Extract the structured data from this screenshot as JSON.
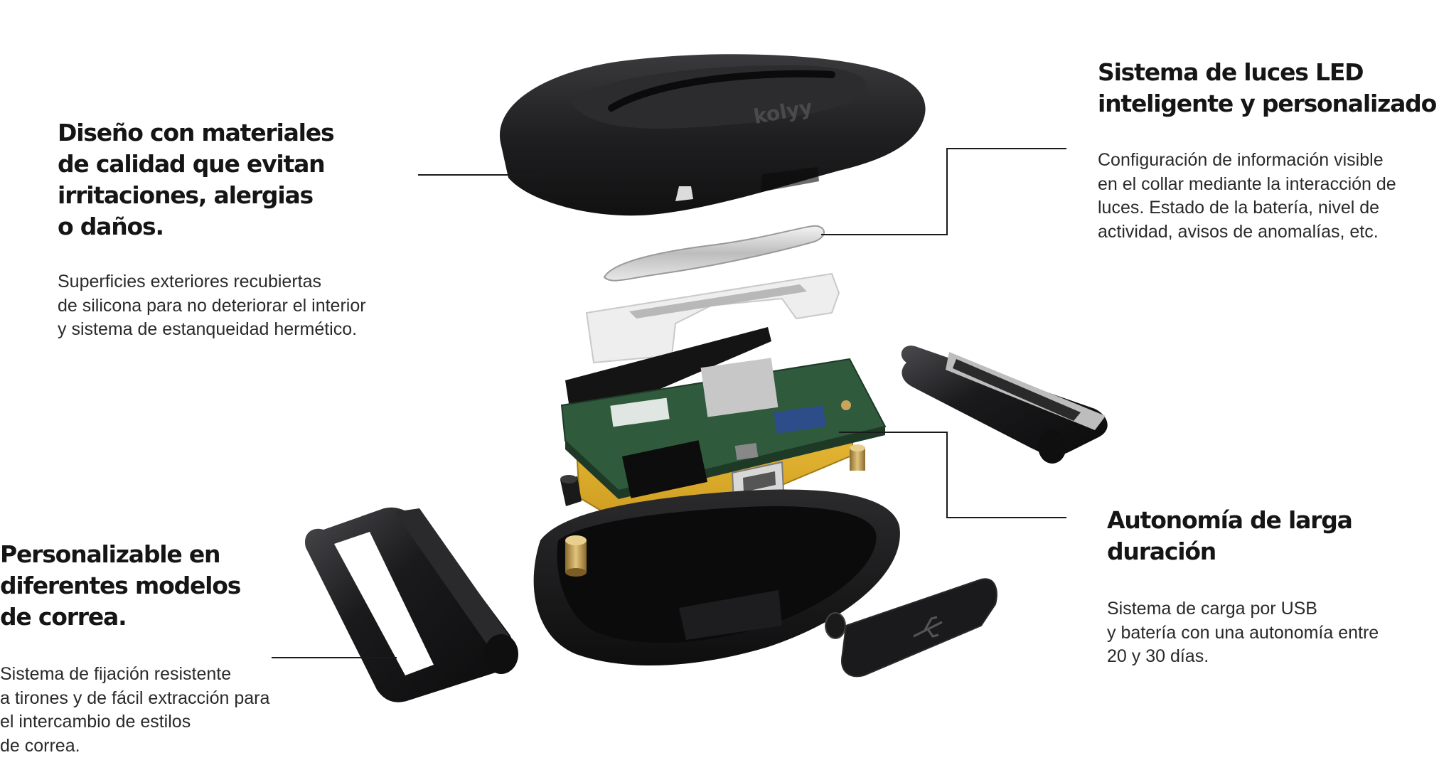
{
  "features": {
    "materials": {
      "title_lines": [
        "Diseño con materiales",
        "de calidad que evitan",
        "irritaciones, alergias",
        "o daños."
      ],
      "body_lines": [
        "Superficies exteriores recubiertas",
        "de silicona para no deteriorar el interior",
        "y sistema de estanqueidad hermético."
      ]
    },
    "led": {
      "title_lines": [
        "Sistema de luces LED",
        "inteligente y personalizado"
      ],
      "body_lines": [
        "Configuración de información visible",
        "en el collar mediante la interacción de",
        "luces. Estado de la batería, nivel de",
        "actividad, avisos de anomalías, etc."
      ]
    },
    "strap": {
      "title_lines": [
        "Personalizable en",
        "diferentes modelos",
        "de correa."
      ],
      "body_lines": [
        "Sistema de fijación resistente",
        "a tirones y de fácil extracción para",
        "el intercambio de estilos",
        "de correa."
      ]
    },
    "battery": {
      "title_lines": [
        "Autonomía de larga",
        "duración"
      ],
      "body_lines": [
        "Sistema de carga por USB",
        "y batería con una autonomía entre",
        "20 y 30 días."
      ]
    }
  },
  "device": {
    "brand_text": "kolyy",
    "icon": "usb-icon"
  },
  "colors": {
    "text": "#151515",
    "housing": "#1c1c1e",
    "pcb": "#2f5a3c",
    "battery": "#e6b52e",
    "diffuser": "#eeeeee",
    "brass": "#c9a45a"
  }
}
